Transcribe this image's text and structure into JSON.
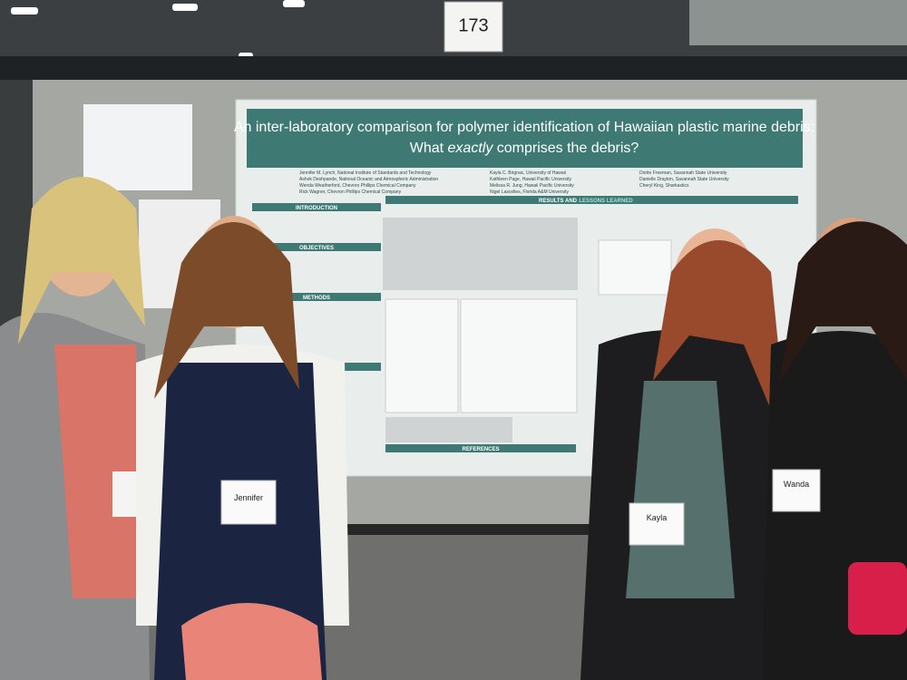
{
  "sign": {
    "number": "173"
  },
  "poster": {
    "title_line1": "An inter-laboratory comparison for polymer identification of Hawaiian plastic marine debris:",
    "title_line2": [
      "What ",
      "exactly",
      " comprises the debris?"
    ],
    "authors": [
      [
        "Jennifer M. Lynch, National Institute of Standards and Technology",
        "Ashok Deshpande, National Oceanic and Atmospheric Administration",
        "Wenda Weatherford, Chevron Phillips Chemical Company",
        "Rick Wagner, Chevron Phillips Chemical Company"
      ],
      [
        "Kayla C. Brignac, University of Hawaii",
        "Kathleen Page, Hawaii Pacific University",
        "Melissa R. Jung, Hawaii Pacific University",
        "Nigel Lascelles, Florida A&M University"
      ],
      [
        "Dorite Freeman, Savannah State University",
        "Danielle Drayton, Savannah State University",
        "Cheryl King, Sharkastics"
      ]
    ],
    "sections": {
      "introduction": "INTRODUCTION",
      "objectives": "OBJECTIVES",
      "methods": "METHODS",
      "results": "RESULTS AND",
      "lessons": "LESSONS LEARNED",
      "references": "REFERENCES"
    }
  },
  "badges": [
    "Jennifer",
    "Kayla",
    "Wanda"
  ]
}
